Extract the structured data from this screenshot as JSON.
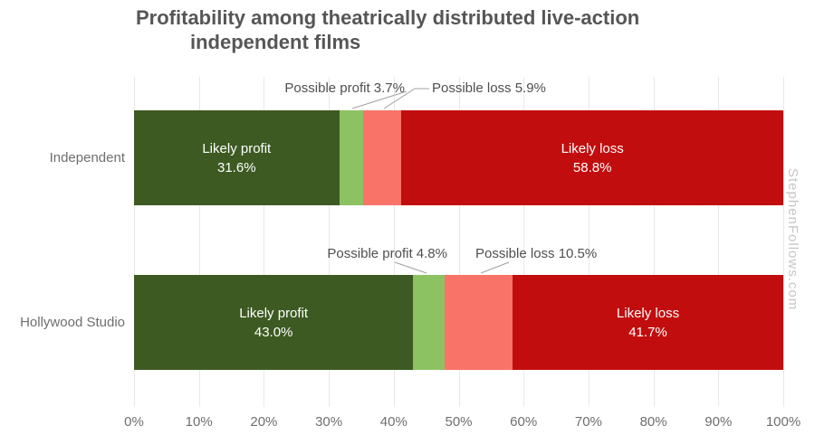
{
  "header": {
    "title_lines": [
      "Profitability among theatrically distributed live-action",
      "independent films"
    ]
  },
  "watermark": "StephenFollows.com",
  "colors": {
    "likely_profit": "#3d5a22",
    "possible_profit": "#8cc262",
    "possible_loss": "#f97369",
    "likely_loss": "#c20d0e",
    "gridline": "#e8e8e8",
    "title_text": "#565656",
    "axis_text": "#6e6e6e",
    "callout_text": "#4f4f4f",
    "bar_label_text": "#ffffff",
    "leader_line": "#a0a0a0",
    "watermark_text": "#c6c6c6",
    "background": "#ffffff"
  },
  "chart_data": {
    "type": "bar",
    "orientation": "horizontal",
    "stacked": true,
    "title": "Profitability among theatrically distributed live-action independent films",
    "categories": [
      "Independent",
      "Hollywood Studio"
    ],
    "series": [
      {
        "name": "Likely profit",
        "values": [
          31.6,
          43.0
        ],
        "color_key": "likely_profit",
        "label_style": "inside"
      },
      {
        "name": "Possible profit",
        "values": [
          3.7,
          4.8
        ],
        "color_key": "possible_profit",
        "label_style": "callout"
      },
      {
        "name": "Possible loss",
        "values": [
          5.9,
          10.5
        ],
        "color_key": "possible_loss",
        "label_style": "callout"
      },
      {
        "name": "Likely loss",
        "values": [
          58.8,
          41.7
        ],
        "color_key": "likely_loss",
        "label_style": "inside"
      }
    ],
    "callouts": [
      {
        "category": "Independent",
        "series": "Possible profit",
        "label": "Possible profit 3.7%"
      },
      {
        "category": "Independent",
        "series": "Possible loss",
        "label": "Possible loss 5.9%"
      },
      {
        "category": "Hollywood Studio",
        "series": "Possible profit",
        "label": "Possible profit 4.8%"
      },
      {
        "category": "Hollywood Studio",
        "series": "Possible loss",
        "label": "Possible loss 10.5%"
      }
    ],
    "x_tick_labels": [
      "0%",
      "10%",
      "20%",
      "30%",
      "40%",
      "50%",
      "60%",
      "70%",
      "80%",
      "90%",
      "100%"
    ],
    "xlim": [
      0,
      100
    ],
    "value_unit": "%",
    "legend": "none",
    "grid": "vertical"
  }
}
